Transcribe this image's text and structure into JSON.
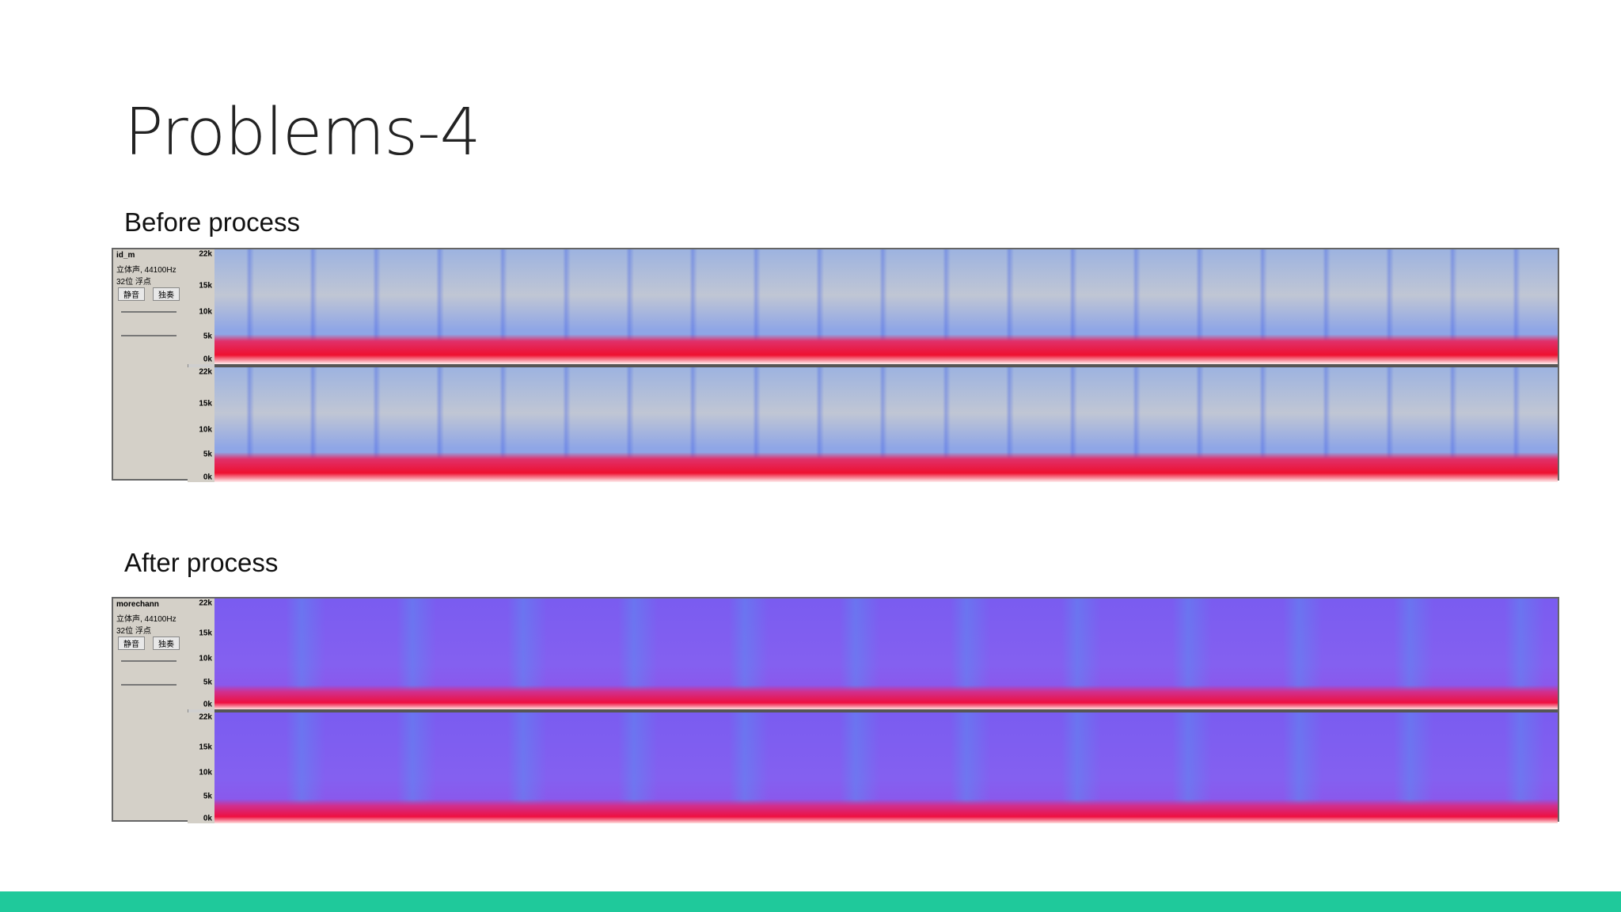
{
  "title": "Problems-4",
  "sections": [
    {
      "label": "Before process",
      "track": {
        "name": "id_m",
        "format": "立体声, 44100Hz",
        "bits": "32位 浮点",
        "buttons": [
          "静音",
          "独奏"
        ],
        "axis": [
          "22k",
          "15k",
          "10k",
          "5k",
          "0k"
        ]
      }
    },
    {
      "label": "After process",
      "track": {
        "name": "morechann",
        "format": "立体声, 44100Hz",
        "bits": "32位 浮点",
        "buttons": [
          "静音",
          "独奏"
        ],
        "axis": [
          "22k",
          "15k",
          "10k",
          "5k",
          "0k"
        ]
      }
    }
  ]
}
